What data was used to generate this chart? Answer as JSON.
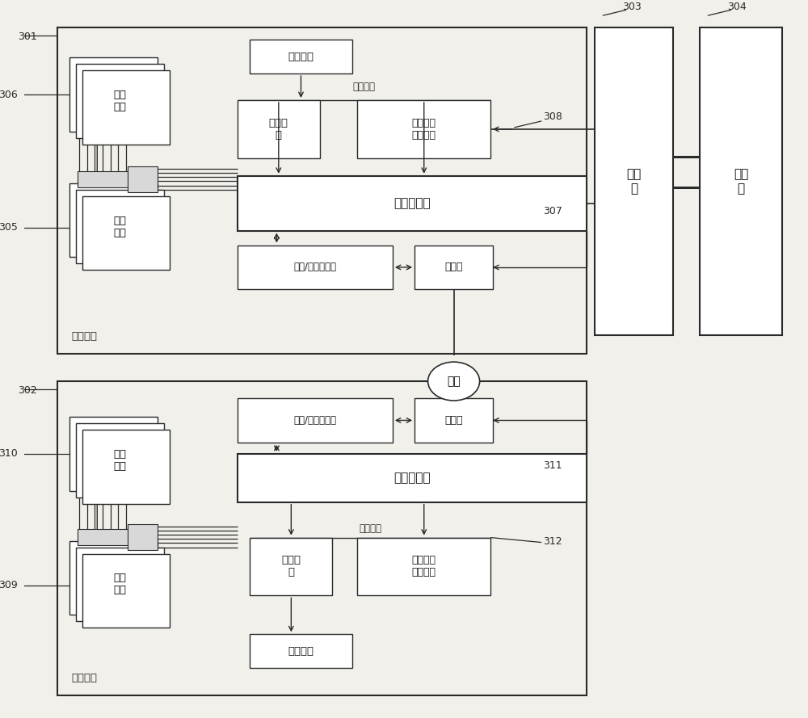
{
  "bg_color": "#f2f0eb",
  "box_color": "#ffffff",
  "line_color": "#2a2a2a",
  "label_301": "301",
  "label_302": "302",
  "label_303": "303",
  "label_304": "304",
  "label_305": "305",
  "label_306": "306",
  "label_307": "307",
  "label_308": "308",
  "label_309": "309",
  "label_310": "310",
  "label_311": "311",
  "label_312": "312",
  "text_jiemokuai": "接口\n模块",
  "text_mokuaichacao": "模块\n插槽",
  "text_dianyuanjieko": "电源接口",
  "text_dianyuandianlu": "电源电\n路",
  "text_danbanjiankonge": "单板状态\n监控电路",
  "text_dianyuanwangluo": "电源网络",
  "text_zhukong": "主控制电路",
  "text_fuyong": "复用/解复用电路",
  "text_guangmokuai": "光模块",
  "text_guangxian": "光纤",
  "text_wanguanduan": "网管\n端",
  "text_shangjiji": "上位\n机",
  "text_juduan": "局端设备",
  "text_yuanduan": "远端设备"
}
